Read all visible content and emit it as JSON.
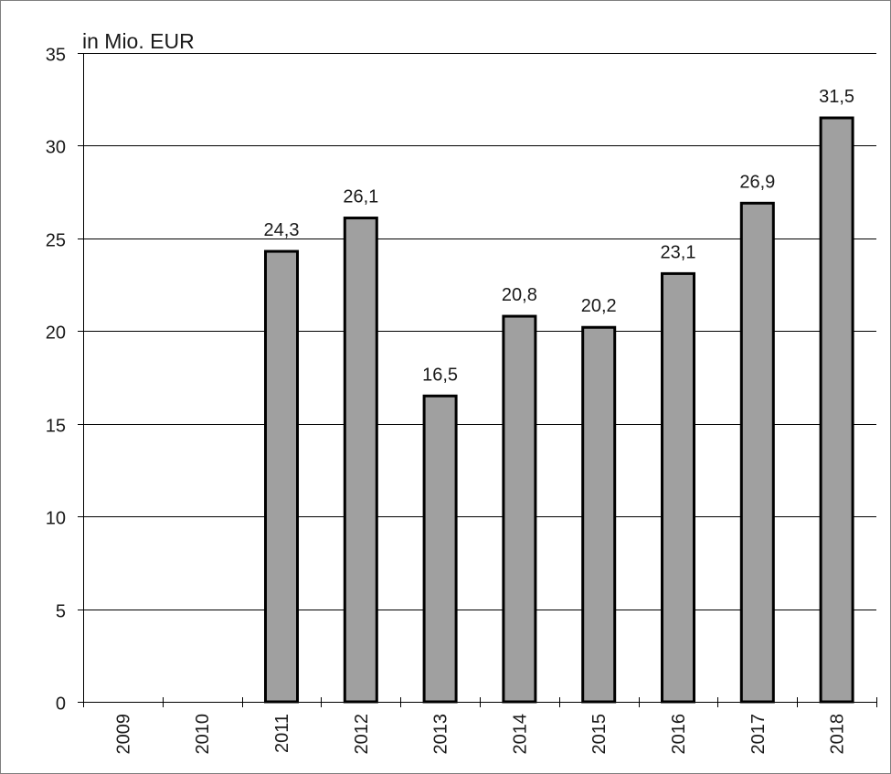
{
  "chart_data": {
    "type": "bar",
    "unit_label": "in Mio. EUR",
    "categories": [
      "2009",
      "2010",
      "2011",
      "2012",
      "2013",
      "2014",
      "2015",
      "2016",
      "2017",
      "2018"
    ],
    "values": [
      null,
      null,
      24.3,
      26.1,
      16.5,
      20.8,
      20.2,
      23.1,
      26.9,
      31.5
    ],
    "data_labels": [
      "",
      "",
      "24,3",
      "26,1",
      "16,5",
      "20,8",
      "20,2",
      "23,1",
      "26,9",
      "31,5"
    ],
    "ylim": [
      0,
      35
    ],
    "yticks": [
      "0",
      "5",
      "10",
      "15",
      "20",
      "25",
      "30",
      "35"
    ],
    "grid": true,
    "legend": "none",
    "colors": {
      "bar_fill": "#a0a0a0",
      "bar_stroke": "#000000",
      "grid": "#000000",
      "frame": "#7f7f7f",
      "text": "#1a1a1a"
    }
  }
}
